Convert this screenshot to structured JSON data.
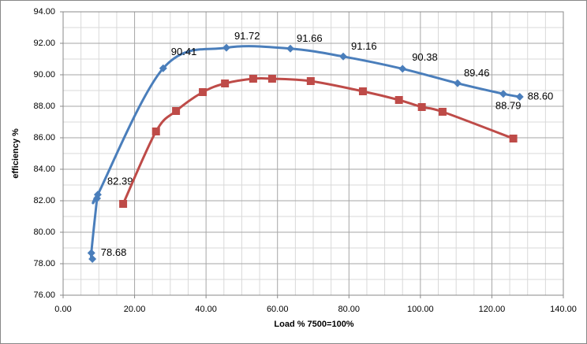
{
  "chart_data": {
    "type": "line",
    "x_label": "Load % 7500=100%",
    "y_label": "efficiency %",
    "xlim": [
      0,
      140
    ],
    "xticks": [
      {
        "value": 0,
        "label": "0.00"
      },
      {
        "value": 20,
        "label": "20.00"
      },
      {
        "value": 40,
        "label": "40.00"
      },
      {
        "value": 60,
        "label": "60.00"
      },
      {
        "value": 80,
        "label": "80.00"
      },
      {
        "value": 100,
        "label": "100.00"
      },
      {
        "value": 120,
        "label": "120.00"
      },
      {
        "value": 140,
        "label": "140.00"
      }
    ],
    "ylim": [
      76,
      94
    ],
    "yticks": [
      {
        "value": 76,
        "label": "76.00"
      },
      {
        "value": 78,
        "label": "78.00"
      },
      {
        "value": 80,
        "label": "80.00"
      },
      {
        "value": 82,
        "label": "82.00"
      },
      {
        "value": 84,
        "label": "84.00"
      },
      {
        "value": 86,
        "label": "86.00"
      },
      {
        "value": 88,
        "label": "88.00"
      },
      {
        "value": 90,
        "label": "90.00"
      },
      {
        "value": 92,
        "label": "92.00"
      },
      {
        "value": 94,
        "label": "94.00"
      }
    ],
    "grid": true,
    "label_color": "#e02020",
    "series": [
      {
        "color": "#4a7ebb",
        "marker": "diamond",
        "x": [
          8.2,
          7.9,
          9.5,
          9.7,
          28.0,
          45.7,
          63.6,
          78.4,
          95.0,
          110.4,
          123.2,
          127.8
        ],
        "values": [
          78.3,
          78.68,
          82.15,
          82.39,
          90.41,
          91.72,
          91.66,
          91.16,
          90.38,
          89.46,
          88.79,
          88.6
        ],
        "value_labels": [
          null,
          "78.68",
          null,
          "82.39",
          "90.41",
          "91.72",
          "91.66",
          "91.16",
          "90.38",
          "89.46",
          "88.79",
          "88.60"
        ]
      },
      {
        "color": "#be4b48",
        "marker": "square",
        "x": [
          16.8,
          26.0,
          31.6,
          39.1,
          45.3,
          53.2,
          58.5,
          69.3,
          83.9,
          94.0,
          100.4,
          106.2,
          126.0
        ],
        "values": [
          81.8,
          86.4,
          87.7,
          88.9,
          89.45,
          89.75,
          89.75,
          89.6,
          88.95,
          88.4,
          87.95,
          87.65,
          85.95
        ]
      }
    ]
  }
}
